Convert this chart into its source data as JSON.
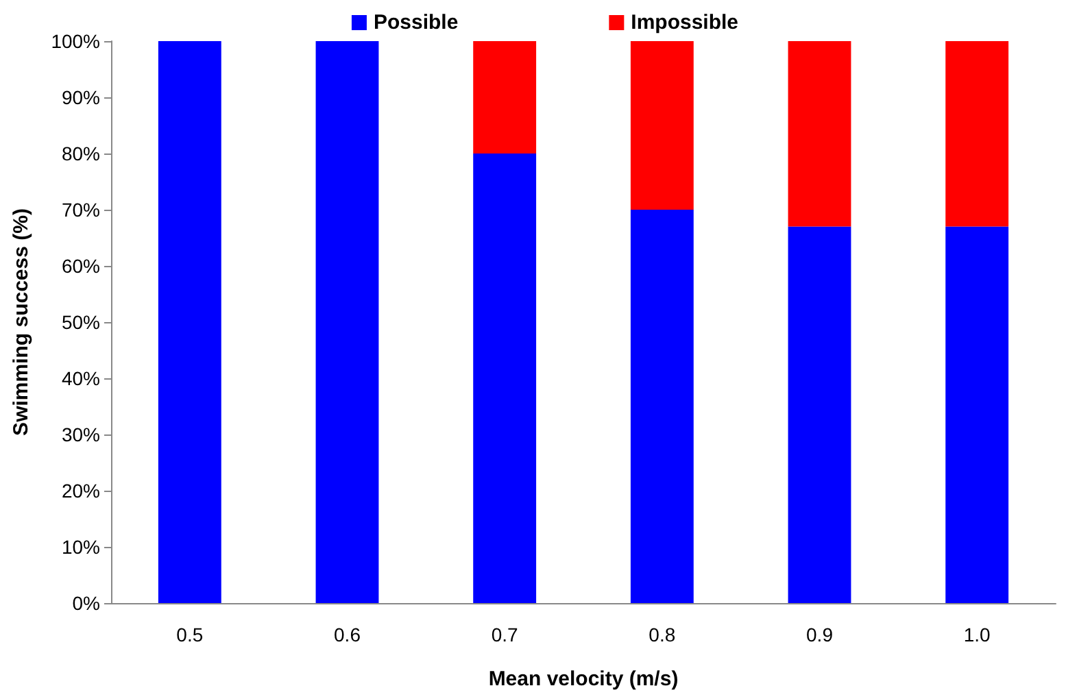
{
  "chart_data": {
    "type": "bar",
    "stacked": true,
    "xlabel": "Mean velocity (m/s)",
    "ylabel": "Swimming success (%)",
    "categories": [
      "0.5",
      "0.6",
      "0.7",
      "0.8",
      "0.9",
      "1.0"
    ],
    "series": [
      {
        "name": "Possible",
        "color": "#0000ff",
        "values": [
          100,
          100,
          80,
          70,
          67,
          67
        ]
      },
      {
        "name": "Impossible",
        "color": "#ff0000",
        "values": [
          0,
          0,
          20,
          30,
          33,
          33
        ]
      }
    ],
    "ylim": [
      0,
      100
    ],
    "yticks": [
      {
        "value": 0,
        "label": "0%"
      },
      {
        "value": 10,
        "label": "10%"
      },
      {
        "value": 20,
        "label": "20%"
      },
      {
        "value": 30,
        "label": "30%"
      },
      {
        "value": 40,
        "label": "40%"
      },
      {
        "value": 50,
        "label": "50%"
      },
      {
        "value": 60,
        "label": "60%"
      },
      {
        "value": 70,
        "label": "70%"
      },
      {
        "value": 80,
        "label": "80%"
      },
      {
        "value": 90,
        "label": "90%"
      },
      {
        "value": 100,
        "label": "100%"
      }
    ],
    "grid": false,
    "legend": "top"
  }
}
